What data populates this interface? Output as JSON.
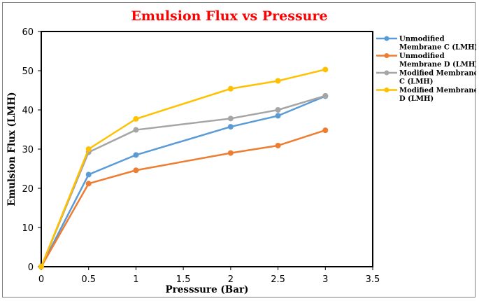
{
  "chart_data": {
    "type": "line",
    "title": "Emulsion Flux vs Pressure",
    "xlabel": "Presssure (Bar)",
    "ylabel": "Emulsion Flux (LMH)",
    "xlim": [
      0,
      3.5
    ],
    "ylim": [
      0,
      60
    ],
    "xticks": [
      "0",
      "0.5",
      "1",
      "1.5",
      "2",
      "2.5",
      "3",
      "3.5"
    ],
    "yticks": [
      "0",
      "10",
      "20",
      "30",
      "40",
      "50",
      "60"
    ],
    "grid": false,
    "legend": "right",
    "x": [
      0,
      0.5,
      1,
      2,
      2.5,
      3
    ],
    "series": [
      {
        "name": "Unmodified Membrane C (LMH)",
        "color": "#5b9bd5",
        "values": [
          0,
          23.5,
          28.5,
          35.7,
          38.5,
          43.5
        ]
      },
      {
        "name": "Unmodified Membrane D (LMH)",
        "color": "#ed7d31",
        "values": [
          0,
          21.2,
          24.6,
          29.0,
          30.9,
          34.8
        ]
      },
      {
        "name": "Modified Membrane C (LMH)",
        "color": "#a5a5a5",
        "values": [
          0,
          29.2,
          34.9,
          37.8,
          40.0,
          43.6
        ]
      },
      {
        "name": "Modified Membrane D (LMH)",
        "color": "#ffc000",
        "values": [
          0,
          30.0,
          37.7,
          45.4,
          47.4,
          50.3
        ]
      }
    ]
  }
}
